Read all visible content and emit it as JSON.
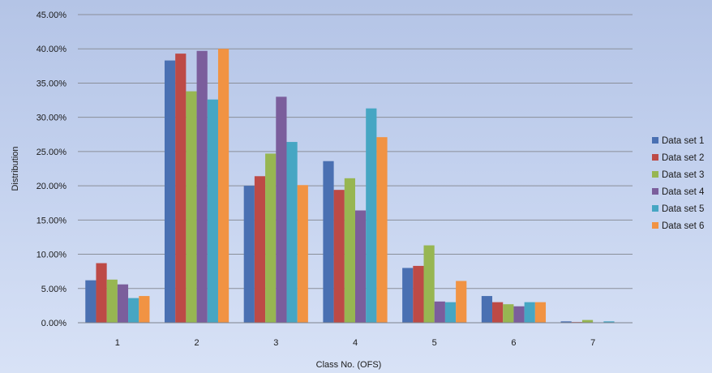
{
  "chart_data": {
    "type": "bar",
    "title": "",
    "xlabel": "Class No. (OFS)",
    "ylabel": "Distribution",
    "categories": [
      "1",
      "2",
      "3",
      "4",
      "5",
      "6",
      "7"
    ],
    "ylim": [
      0,
      45
    ],
    "yticks": [
      "0.00%",
      "5.00%",
      "10.00%",
      "15.00%",
      "20.00%",
      "25.00%",
      "30.00%",
      "35.00%",
      "40.00%",
      "45.00%"
    ],
    "grid": true,
    "legend_position": "right",
    "series": [
      {
        "name": "Data set 1",
        "color": "#4a70b2",
        "values": [
          6.2,
          38.3,
          20.0,
          23.6,
          8.0,
          3.9,
          0.2
        ]
      },
      {
        "name": "Data set 2",
        "color": "#bd4a46",
        "values": [
          8.7,
          39.3,
          21.4,
          19.4,
          8.3,
          3.0,
          0.1
        ]
      },
      {
        "name": "Data set 3",
        "color": "#97b652",
        "values": [
          6.3,
          33.8,
          24.7,
          21.1,
          11.3,
          2.7,
          0.4
        ]
      },
      {
        "name": "Data set 4",
        "color": "#7b5e9c",
        "values": [
          5.6,
          39.7,
          33.0,
          16.4,
          3.1,
          2.4,
          0.0
        ]
      },
      {
        "name": "Data set 5",
        "color": "#46a6c3",
        "values": [
          3.6,
          32.6,
          26.4,
          31.3,
          3.0,
          3.0,
          0.2
        ]
      },
      {
        "name": "Data set 6",
        "color": "#f19343",
        "values": [
          3.9,
          40.0,
          20.1,
          27.1,
          6.1,
          3.0,
          0.0
        ]
      }
    ]
  }
}
